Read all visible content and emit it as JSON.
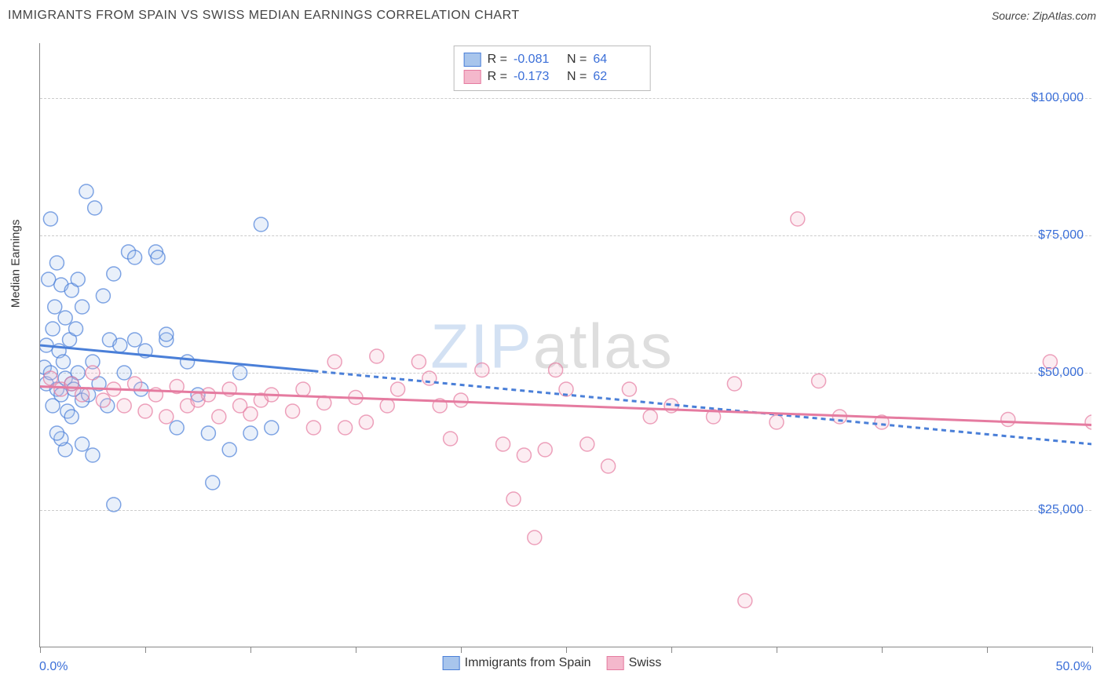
{
  "header": {
    "title": "IMMIGRANTS FROM SPAIN VS SWISS MEDIAN EARNINGS CORRELATION CHART",
    "source": "Source: ZipAtlas.com"
  },
  "watermark": {
    "part1": "ZIP",
    "part2": "atlas"
  },
  "chart": {
    "type": "scatter",
    "y_axis_title": "Median Earnings",
    "background_color": "#ffffff",
    "grid_color": "#cccccc",
    "axis_color": "#888888",
    "label_color": "#3b6fd8",
    "xlim": [
      0,
      50
    ],
    "ylim": [
      0,
      110000
    ],
    "x_ticks": [
      0,
      5,
      10,
      15,
      20,
      25,
      30,
      35,
      40,
      45,
      50
    ],
    "x_tick_labels": {
      "min": "0.0%",
      "max": "50.0%"
    },
    "y_gridlines": [
      25000,
      50000,
      75000,
      100000
    ],
    "y_tick_labels": [
      "$25,000",
      "$50,000",
      "$75,000",
      "$100,000"
    ],
    "marker_radius": 9,
    "marker_fill_opacity": 0.25,
    "marker_stroke_opacity": 0.7,
    "marker_stroke_width": 1.5,
    "trend_line_width": 3,
    "trend_dash": "6 5",
    "series": [
      {
        "key": "spain",
        "label": "Immigrants from Spain",
        "color": "#4a7fd8",
        "fill": "#a8c5ec",
        "R": "-0.081",
        "N": "64",
        "trend": {
          "x1": 0,
          "y1": 55000,
          "x2": 50,
          "y2": 37000,
          "solid_until_x": 13
        },
        "points": [
          [
            0.2,
            51000
          ],
          [
            0.3,
            48000
          ],
          [
            0.3,
            55000
          ],
          [
            0.4,
            67000
          ],
          [
            0.5,
            50000
          ],
          [
            0.5,
            78000
          ],
          [
            0.6,
            44000
          ],
          [
            0.6,
            58000
          ],
          [
            0.7,
            62000
          ],
          [
            0.8,
            47000
          ],
          [
            0.8,
            70000
          ],
          [
            0.9,
            54000
          ],
          [
            1.0,
            66000
          ],
          [
            1.0,
            46000
          ],
          [
            1.1,
            52000
          ],
          [
            1.2,
            60000
          ],
          [
            1.2,
            49000
          ],
          [
            1.3,
            43000
          ],
          [
            1.4,
            56000
          ],
          [
            1.5,
            65000
          ],
          [
            1.5,
            48000
          ],
          [
            1.6,
            47000
          ],
          [
            1.7,
            58000
          ],
          [
            1.8,
            67000
          ],
          [
            1.8,
            50000
          ],
          [
            2.0,
            45000
          ],
          [
            2.0,
            62000
          ],
          [
            2.2,
            83000
          ],
          [
            2.3,
            46000
          ],
          [
            2.5,
            52000
          ],
          [
            2.6,
            80000
          ],
          [
            2.8,
            48000
          ],
          [
            3.0,
            64000
          ],
          [
            3.2,
            44000
          ],
          [
            3.3,
            56000
          ],
          [
            3.5,
            68000
          ],
          [
            3.8,
            55000
          ],
          [
            4.0,
            50000
          ],
          [
            4.2,
            72000
          ],
          [
            4.5,
            56000
          ],
          [
            4.5,
            71000
          ],
          [
            4.8,
            47000
          ],
          [
            5.0,
            54000
          ],
          [
            5.5,
            72000
          ],
          [
            5.6,
            71000
          ],
          [
            6.0,
            56000
          ],
          [
            6.0,
            57000
          ],
          [
            6.5,
            40000
          ],
          [
            7.0,
            52000
          ],
          [
            7.5,
            46000
          ],
          [
            8.0,
            39000
          ],
          [
            8.2,
            30000
          ],
          [
            9.0,
            36000
          ],
          [
            9.5,
            50000
          ],
          [
            10.0,
            39000
          ],
          [
            10.5,
            77000
          ],
          [
            11.0,
            40000
          ],
          [
            3.5,
            26000
          ],
          [
            1.2,
            36000
          ],
          [
            2.0,
            37000
          ],
          [
            2.5,
            35000
          ],
          [
            1.0,
            38000
          ],
          [
            0.8,
            39000
          ],
          [
            1.5,
            42000
          ]
        ]
      },
      {
        "key": "swiss",
        "label": "Swiss",
        "color": "#e57ba0",
        "fill": "#f4b8cc",
        "R": "-0.173",
        "N": "62",
        "trend": {
          "x1": 0,
          "y1": 47500,
          "x2": 50,
          "y2": 40500,
          "solid_until_x": 50
        },
        "points": [
          [
            0.5,
            49000
          ],
          [
            1.0,
            47000
          ],
          [
            1.5,
            48000
          ],
          [
            2.0,
            46000
          ],
          [
            2.5,
            50000
          ],
          [
            3.0,
            45000
          ],
          [
            3.5,
            47000
          ],
          [
            4.0,
            44000
          ],
          [
            4.5,
            48000
          ],
          [
            5.0,
            43000
          ],
          [
            5.5,
            46000
          ],
          [
            6.0,
            42000
          ],
          [
            6.5,
            47500
          ],
          [
            7.0,
            44000
          ],
          [
            7.5,
            45000
          ],
          [
            8.0,
            46000
          ],
          [
            8.5,
            42000
          ],
          [
            9.0,
            47000
          ],
          [
            9.5,
            44000
          ],
          [
            10.0,
            42500
          ],
          [
            10.5,
            45000
          ],
          [
            11.0,
            46000
          ],
          [
            12.0,
            43000
          ],
          [
            12.5,
            47000
          ],
          [
            13.0,
            40000
          ],
          [
            13.5,
            44500
          ],
          [
            14.0,
            52000
          ],
          [
            14.5,
            40000
          ],
          [
            15.0,
            45500
          ],
          [
            15.5,
            41000
          ],
          [
            16.0,
            53000
          ],
          [
            16.5,
            44000
          ],
          [
            17.0,
            47000
          ],
          [
            18.0,
            52000
          ],
          [
            18.5,
            49000
          ],
          [
            19.0,
            44000
          ],
          [
            19.5,
            38000
          ],
          [
            20.0,
            45000
          ],
          [
            21.0,
            50500
          ],
          [
            22.0,
            37000
          ],
          [
            22.5,
            27000
          ],
          [
            23.0,
            35000
          ],
          [
            23.5,
            20000
          ],
          [
            24.0,
            36000
          ],
          [
            24.5,
            50500
          ],
          [
            25.0,
            47000
          ],
          [
            26.0,
            37000
          ],
          [
            27.0,
            33000
          ],
          [
            28.0,
            47000
          ],
          [
            29.0,
            42000
          ],
          [
            30.0,
            44000
          ],
          [
            32.0,
            42000
          ],
          [
            33.0,
            48000
          ],
          [
            33.5,
            8500
          ],
          [
            35.0,
            41000
          ],
          [
            36.0,
            78000
          ],
          [
            37.0,
            48500
          ],
          [
            38.0,
            42000
          ],
          [
            40.0,
            41000
          ],
          [
            46.0,
            41500
          ],
          [
            48.0,
            52000
          ],
          [
            50.0,
            41000
          ]
        ]
      }
    ]
  },
  "legend_top": {
    "r_label": "R =",
    "n_label": "N ="
  }
}
